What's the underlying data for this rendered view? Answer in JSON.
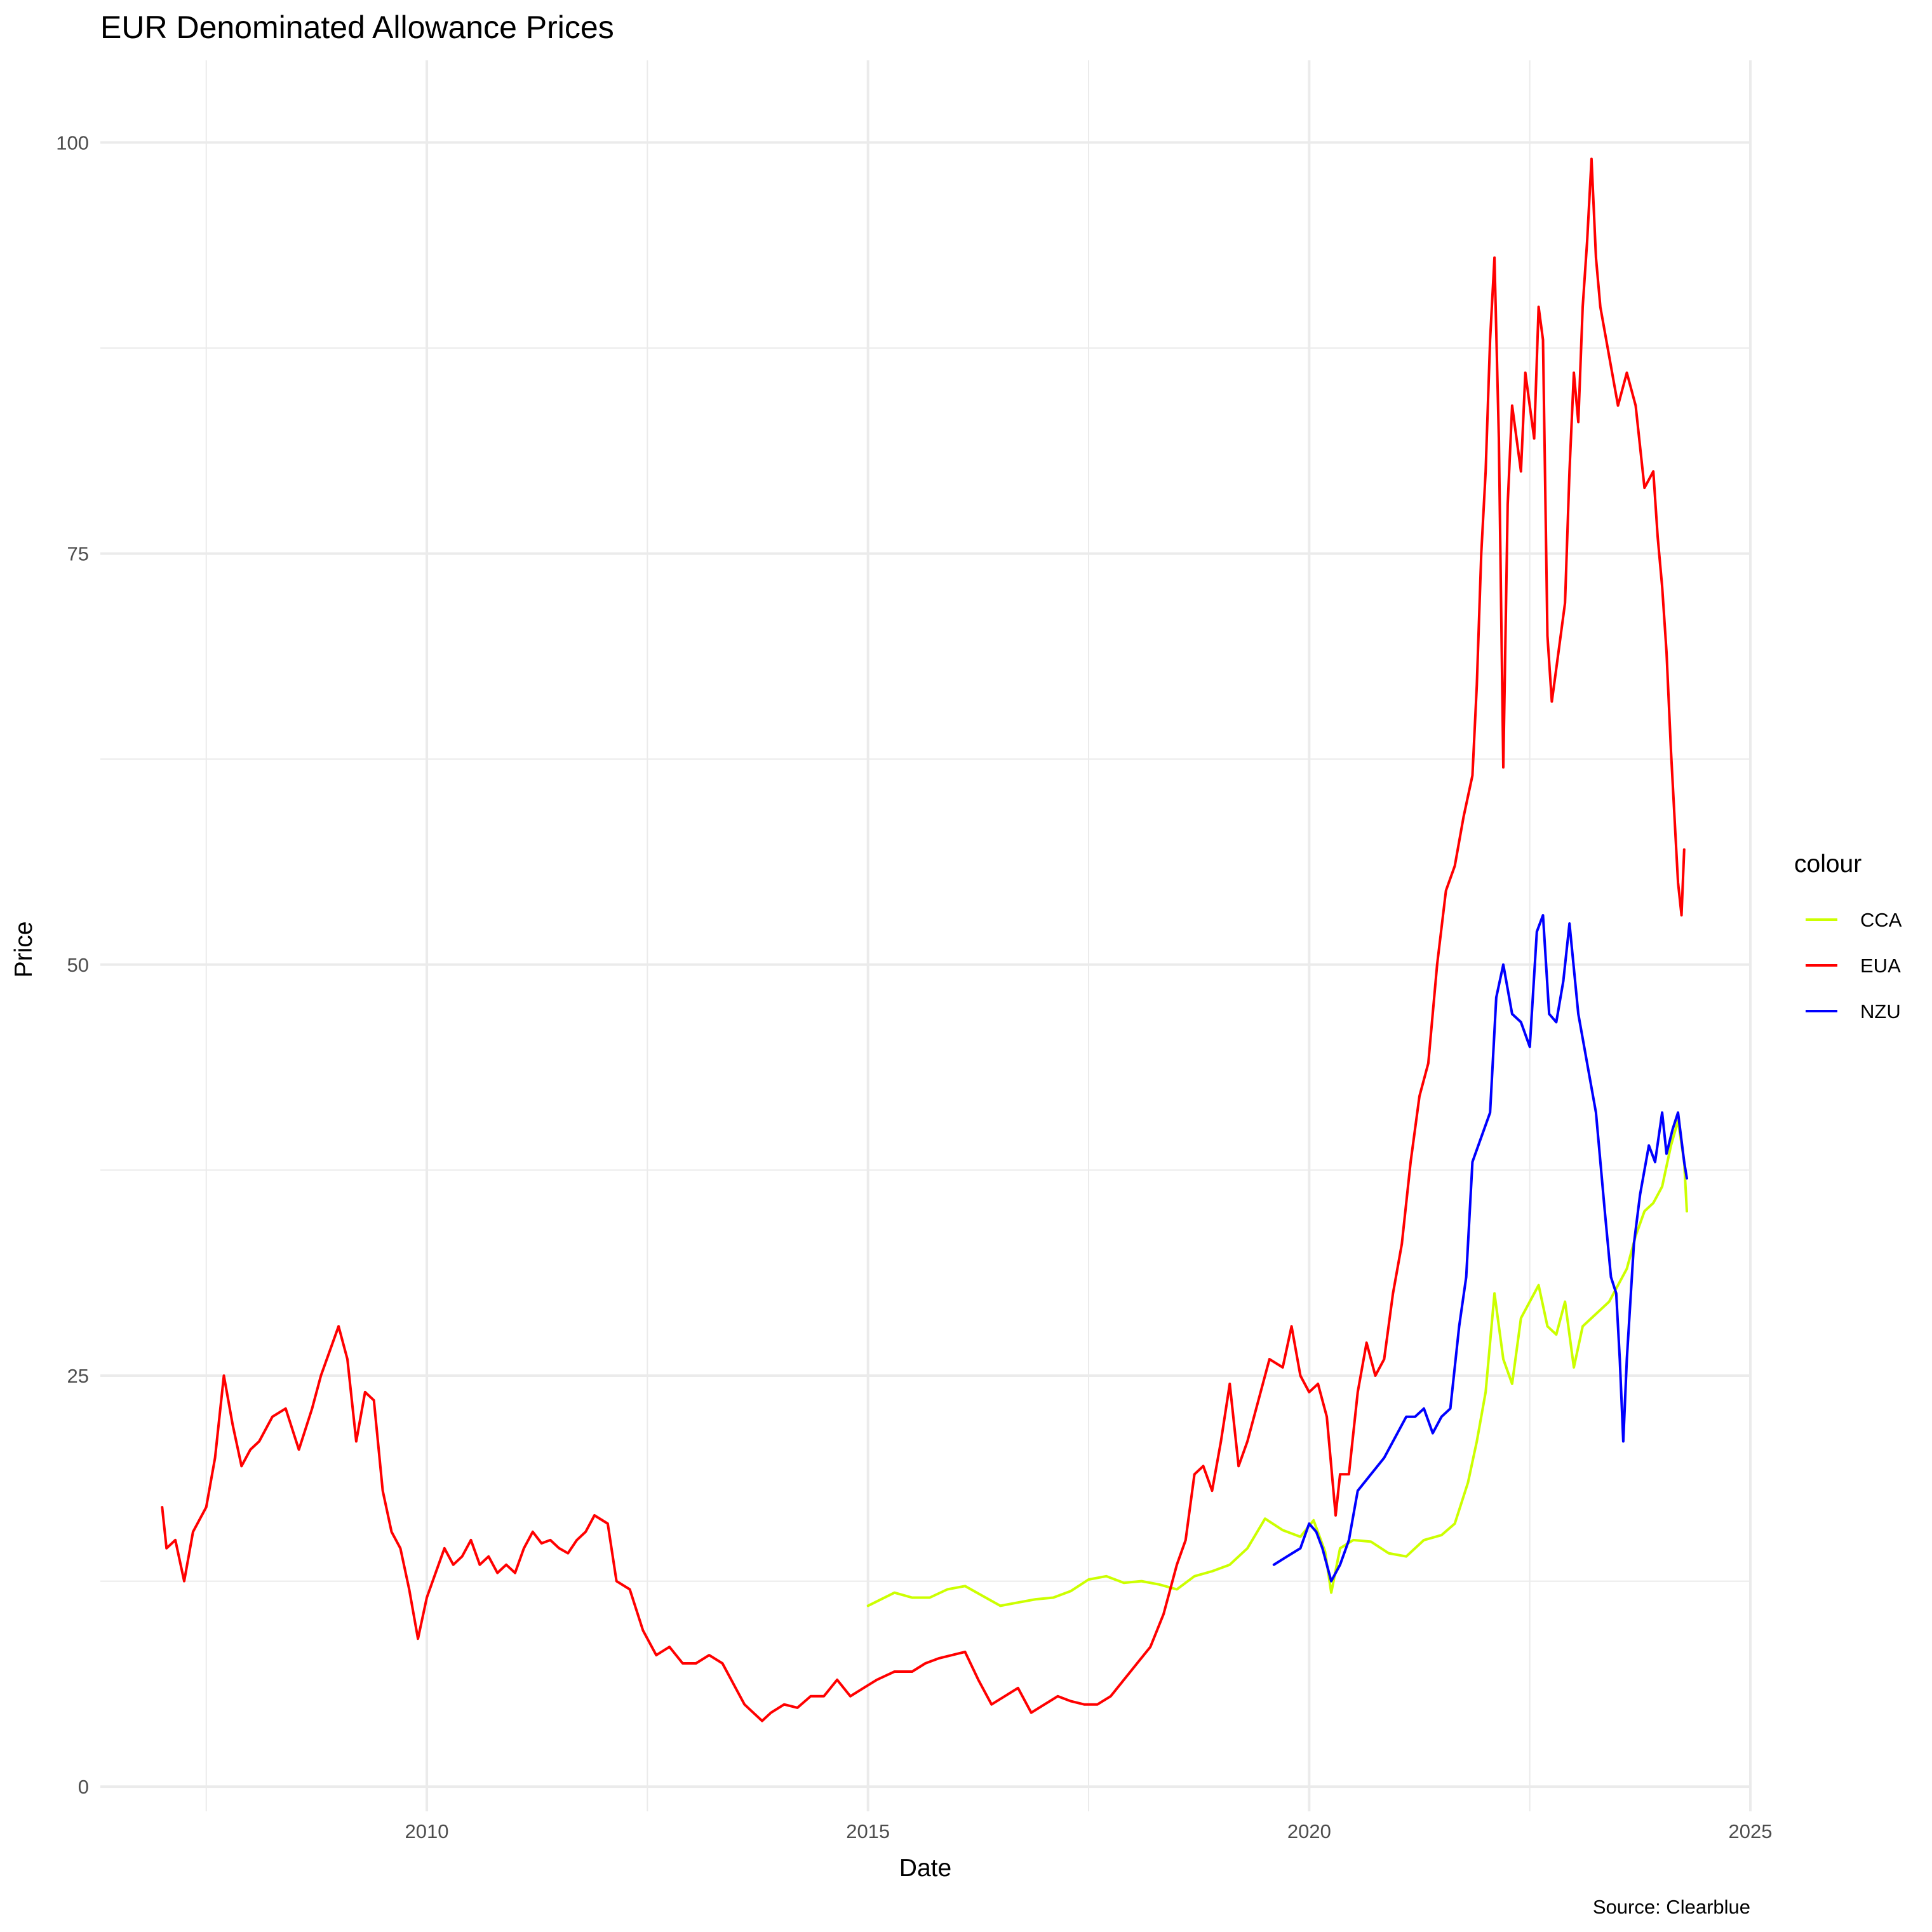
{
  "chart_data": {
    "type": "line",
    "title": "EUR Denominated Allowance Prices",
    "xlabel": "Date",
    "ylabel": "Price",
    "caption": "Source: Clearblue",
    "xlim": [
      2006.3,
      2025.0
    ],
    "ylim": [
      -1.5,
      105
    ],
    "x_ticks": [
      2010,
      2015,
      2020,
      2025
    ],
    "x_tick_labels": [
      "2010",
      "2015",
      "2020",
      "2025"
    ],
    "y_ticks": [
      0,
      25,
      50,
      75,
      100
    ],
    "y_tick_labels": [
      "0",
      "25",
      "50",
      "75",
      "100"
    ],
    "grid": true,
    "legend": {
      "title": "colour",
      "position": "right"
    },
    "series": [
      {
        "name": "CCA",
        "color": "#ccff00",
        "points": [
          [
            2015.0,
            11.0
          ],
          [
            2015.15,
            11.4
          ],
          [
            2015.3,
            11.8
          ],
          [
            2015.5,
            11.5
          ],
          [
            2015.7,
            11.5
          ],
          [
            2015.9,
            12.0
          ],
          [
            2016.1,
            12.2
          ],
          [
            2016.3,
            11.6
          ],
          [
            2016.5,
            11.0
          ],
          [
            2016.7,
            11.2
          ],
          [
            2016.9,
            11.4
          ],
          [
            2017.1,
            11.5
          ],
          [
            2017.3,
            11.9
          ],
          [
            2017.5,
            12.6
          ],
          [
            2017.7,
            12.8
          ],
          [
            2017.9,
            12.4
          ],
          [
            2018.1,
            12.5
          ],
          [
            2018.3,
            12.3
          ],
          [
            2018.5,
            12.0
          ],
          [
            2018.7,
            12.8
          ],
          [
            2018.9,
            13.1
          ],
          [
            2019.1,
            13.5
          ],
          [
            2019.3,
            14.5
          ],
          [
            2019.5,
            16.3
          ],
          [
            2019.7,
            15.6
          ],
          [
            2019.9,
            15.2
          ],
          [
            2020.05,
            16.2
          ],
          [
            2020.18,
            14.3
          ],
          [
            2020.25,
            11.8
          ],
          [
            2020.35,
            14.5
          ],
          [
            2020.5,
            15.0
          ],
          [
            2020.7,
            14.9
          ],
          [
            2020.9,
            14.2
          ],
          [
            2021.1,
            14.0
          ],
          [
            2021.3,
            15.0
          ],
          [
            2021.5,
            15.3
          ],
          [
            2021.65,
            16.0
          ],
          [
            2021.8,
            18.5
          ],
          [
            2021.9,
            21.0
          ],
          [
            2022.0,
            24.0
          ],
          [
            2022.1,
            30.0
          ],
          [
            2022.2,
            26.0
          ],
          [
            2022.3,
            24.5
          ],
          [
            2022.4,
            28.5
          ],
          [
            2022.5,
            29.5
          ],
          [
            2022.6,
            30.5
          ],
          [
            2022.7,
            28.0
          ],
          [
            2022.8,
            27.5
          ],
          [
            2022.9,
            29.5
          ],
          [
            2023.0,
            25.5
          ],
          [
            2023.1,
            28.0
          ],
          [
            2023.2,
            28.5
          ],
          [
            2023.3,
            29.0
          ],
          [
            2023.4,
            29.5
          ],
          [
            2023.5,
            30.5
          ],
          [
            2023.6,
            31.5
          ],
          [
            2023.7,
            33.5
          ],
          [
            2023.8,
            35.0
          ],
          [
            2023.9,
            35.5
          ],
          [
            2024.0,
            36.5
          ],
          [
            2024.1,
            39.0
          ],
          [
            2024.18,
            40.5
          ],
          [
            2024.25,
            38.0
          ],
          [
            2024.28,
            35.0
          ]
        ]
      },
      {
        "name": "EUA",
        "color": "#ff0000",
        "points": [
          [
            2007.0,
            17.0
          ],
          [
            2007.05,
            14.5
          ],
          [
            2007.15,
            15.0
          ],
          [
            2007.25,
            12.5
          ],
          [
            2007.35,
            15.5
          ],
          [
            2007.5,
            17.0
          ],
          [
            2007.6,
            20.0
          ],
          [
            2007.7,
            25.0
          ],
          [
            2007.8,
            22.0
          ],
          [
            2007.9,
            19.5
          ],
          [
            2008.0,
            20.5
          ],
          [
            2008.1,
            21.0
          ],
          [
            2008.25,
            22.5
          ],
          [
            2008.4,
            23.0
          ],
          [
            2008.55,
            20.5
          ],
          [
            2008.7,
            23.0
          ],
          [
            2008.8,
            25.0
          ],
          [
            2008.9,
            26.5
          ],
          [
            2009.0,
            28.0
          ],
          [
            2009.1,
            26.0
          ],
          [
            2009.2,
            21.0
          ],
          [
            2009.3,
            24.0
          ],
          [
            2009.4,
            23.5
          ],
          [
            2009.5,
            18.0
          ],
          [
            2009.6,
            15.5
          ],
          [
            2009.7,
            14.5
          ],
          [
            2009.8,
            12.0
          ],
          [
            2009.9,
            9.0
          ],
          [
            2010.0,
            11.5
          ],
          [
            2010.1,
            13.0
          ],
          [
            2010.2,
            14.5
          ],
          [
            2010.3,
            13.5
          ],
          [
            2010.4,
            14.0
          ],
          [
            2010.5,
            15.0
          ],
          [
            2010.6,
            13.5
          ],
          [
            2010.7,
            14.0
          ],
          [
            2010.8,
            13.0
          ],
          [
            2010.9,
            13.5
          ],
          [
            2011.0,
            13.0
          ],
          [
            2011.1,
            14.5
          ],
          [
            2011.2,
            15.5
          ],
          [
            2011.3,
            14.8
          ],
          [
            2011.4,
            15.0
          ],
          [
            2011.5,
            14.5
          ],
          [
            2011.6,
            14.2
          ],
          [
            2011.7,
            15.0
          ],
          [
            2011.8,
            15.5
          ],
          [
            2011.9,
            16.5
          ],
          [
            2012.05,
            16.0
          ],
          [
            2012.15,
            12.5
          ],
          [
            2012.3,
            12.0
          ],
          [
            2012.45,
            9.5
          ],
          [
            2012.6,
            8.0
          ],
          [
            2012.75,
            8.5
          ],
          [
            2012.9,
            7.5
          ],
          [
            2013.05,
            7.5
          ],
          [
            2013.2,
            8.0
          ],
          [
            2013.35,
            7.5
          ],
          [
            2013.5,
            6.0
          ],
          [
            2013.6,
            5.0
          ],
          [
            2013.7,
            4.5
          ],
          [
            2013.8,
            4.0
          ],
          [
            2013.9,
            4.5
          ],
          [
            2014.05,
            5.0
          ],
          [
            2014.2,
            4.8
          ],
          [
            2014.35,
            5.5
          ],
          [
            2014.5,
            5.5
          ],
          [
            2014.65,
            6.5
          ],
          [
            2014.8,
            5.5
          ],
          [
            2014.95,
            6.0
          ],
          [
            2015.1,
            6.5
          ],
          [
            2015.3,
            7.0
          ],
          [
            2015.5,
            7.0
          ],
          [
            2015.65,
            7.5
          ],
          [
            2015.8,
            7.8
          ],
          [
            2015.95,
            8.0
          ],
          [
            2016.1,
            8.2
          ],
          [
            2016.25,
            6.5
          ],
          [
            2016.4,
            5.0
          ],
          [
            2016.55,
            5.5
          ],
          [
            2016.7,
            6.0
          ],
          [
            2016.85,
            4.5
          ],
          [
            2017.0,
            5.0
          ],
          [
            2017.15,
            5.5
          ],
          [
            2017.3,
            5.2
          ],
          [
            2017.45,
            5.0
          ],
          [
            2017.6,
            5.0
          ],
          [
            2017.75,
            5.5
          ],
          [
            2017.9,
            6.5
          ],
          [
            2018.05,
            7.5
          ],
          [
            2018.2,
            8.5
          ],
          [
            2018.35,
            10.5
          ],
          [
            2018.5,
            13.5
          ],
          [
            2018.6,
            15.0
          ],
          [
            2018.7,
            19.0
          ],
          [
            2018.8,
            19.5
          ],
          [
            2018.9,
            18.0
          ],
          [
            2019.0,
            21.0
          ],
          [
            2019.1,
            24.5
          ],
          [
            2019.2,
            19.5
          ],
          [
            2019.3,
            21.0
          ],
          [
            2019.45,
            24.0
          ],
          [
            2019.55,
            26.0
          ],
          [
            2019.7,
            25.5
          ],
          [
            2019.8,
            28.0
          ],
          [
            2019.9,
            25.0
          ],
          [
            2020.0,
            24.0
          ],
          [
            2020.1,
            24.5
          ],
          [
            2020.2,
            22.5
          ],
          [
            2020.3,
            16.5
          ],
          [
            2020.35,
            19.0
          ],
          [
            2020.45,
            19.0
          ],
          [
            2020.55,
            24.0
          ],
          [
            2020.65,
            27.0
          ],
          [
            2020.75,
            25.0
          ],
          [
            2020.85,
            26.0
          ],
          [
            2020.95,
            30.0
          ],
          [
            2021.05,
            33.0
          ],
          [
            2021.15,
            38.0
          ],
          [
            2021.25,
            42.0
          ],
          [
            2021.35,
            44.0
          ],
          [
            2021.45,
            50.0
          ],
          [
            2021.55,
            54.5
          ],
          [
            2021.65,
            56.0
          ],
          [
            2021.75,
            59.0
          ],
          [
            2021.85,
            61.5
          ],
          [
            2021.9,
            67.0
          ],
          [
            2021.95,
            75.0
          ],
          [
            2022.0,
            80.0
          ],
          [
            2022.05,
            88.0
          ],
          [
            2022.1,
            93.0
          ],
          [
            2022.15,
            82.0
          ],
          [
            2022.2,
            62.0
          ],
          [
            2022.25,
            78.0
          ],
          [
            2022.3,
            84.0
          ],
          [
            2022.4,
            80.0
          ],
          [
            2022.45,
            86.0
          ],
          [
            2022.55,
            82.0
          ],
          [
            2022.6,
            90.0
          ],
          [
            2022.65,
            88.0
          ],
          [
            2022.7,
            70.0
          ],
          [
            2022.75,
            66.0
          ],
          [
            2022.8,
            68.0
          ],
          [
            2022.9,
            72.0
          ],
          [
            2022.95,
            80.0
          ],
          [
            2023.0,
            86.0
          ],
          [
            2023.05,
            83.0
          ],
          [
            2023.1,
            90.0
          ],
          [
            2023.15,
            94.0
          ],
          [
            2023.2,
            99.0
          ],
          [
            2023.25,
            93.0
          ],
          [
            2023.3,
            90.0
          ],
          [
            2023.4,
            87.0
          ],
          [
            2023.5,
            84.0
          ],
          [
            2023.6,
            86.0
          ],
          [
            2023.7,
            84.0
          ],
          [
            2023.8,
            79.0
          ],
          [
            2023.9,
            80.0
          ],
          [
            2023.95,
            76.0
          ],
          [
            2024.0,
            73.0
          ],
          [
            2024.05,
            69.0
          ],
          [
            2024.1,
            63.0
          ],
          [
            2024.15,
            58.0
          ],
          [
            2024.18,
            55.0
          ],
          [
            2024.22,
            53.0
          ],
          [
            2024.25,
            57.0
          ]
        ]
      },
      {
        "name": "NZU",
        "color": "#0000ff",
        "points": [
          [
            2019.6,
            13.5
          ],
          [
            2019.75,
            14.0
          ],
          [
            2019.9,
            14.5
          ],
          [
            2020.0,
            16.0
          ],
          [
            2020.08,
            15.5
          ],
          [
            2020.15,
            14.5
          ],
          [
            2020.25,
            12.5
          ],
          [
            2020.35,
            13.5
          ],
          [
            2020.45,
            15.0
          ],
          [
            2020.55,
            18.0
          ],
          [
            2020.7,
            19.0
          ],
          [
            2020.85,
            20.0
          ],
          [
            2021.0,
            21.5
          ],
          [
            2021.1,
            22.5
          ],
          [
            2021.2,
            22.5
          ],
          [
            2021.3,
            23.0
          ],
          [
            2021.4,
            21.5
          ],
          [
            2021.5,
            22.5
          ],
          [
            2021.6,
            23.0
          ],
          [
            2021.7,
            28.0
          ],
          [
            2021.78,
            31.0
          ],
          [
            2021.85,
            38.0
          ],
          [
            2021.95,
            39.5
          ],
          [
            2022.05,
            41.0
          ],
          [
            2022.12,
            48.0
          ],
          [
            2022.2,
            50.0
          ],
          [
            2022.3,
            47.0
          ],
          [
            2022.4,
            46.5
          ],
          [
            2022.5,
            45.0
          ],
          [
            2022.58,
            52.0
          ],
          [
            2022.65,
            53.0
          ],
          [
            2022.72,
            47.0
          ],
          [
            2022.8,
            46.5
          ],
          [
            2022.88,
            49.0
          ],
          [
            2022.95,
            52.5
          ],
          [
            2023.05,
            47.0
          ],
          [
            2023.15,
            44.0
          ],
          [
            2023.25,
            41.0
          ],
          [
            2023.35,
            35.0
          ],
          [
            2023.42,
            31.0
          ],
          [
            2023.48,
            30.0
          ],
          [
            2023.52,
            26.0
          ],
          [
            2023.56,
            21.0
          ],
          [
            2023.6,
            26.0
          ],
          [
            2023.68,
            33.0
          ],
          [
            2023.75,
            36.0
          ],
          [
            2023.85,
            39.0
          ],
          [
            2023.92,
            38.0
          ],
          [
            2024.0,
            41.0
          ],
          [
            2024.05,
            38.5
          ],
          [
            2024.12,
            40.0
          ],
          [
            2024.18,
            41.0
          ],
          [
            2024.25,
            38.0
          ],
          [
            2024.28,
            37.0
          ]
        ]
      }
    ]
  }
}
